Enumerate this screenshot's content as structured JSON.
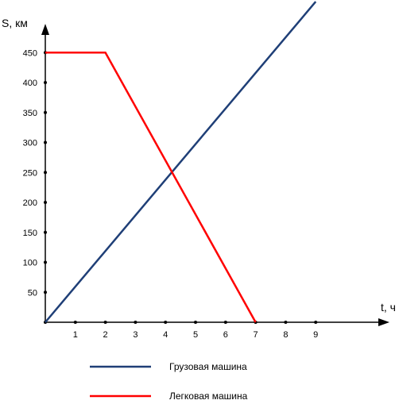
{
  "chart_data": {
    "type": "line",
    "xlabel": "t, ч",
    "ylabel": "S, км",
    "xlim": [
      0,
      10.85
    ],
    "ylim": [
      0,
      500
    ],
    "x_ticks": [
      1,
      2,
      3,
      4,
      5,
      6,
      7,
      8,
      9
    ],
    "y_ticks": [
      50,
      100,
      150,
      200,
      250,
      300,
      350,
      400,
      450
    ],
    "grid": false,
    "legend_position": "bottom",
    "series": [
      {
        "name": "Грузовая машина",
        "color": "#1f3f77",
        "points": [
          [
            0,
            0
          ],
          [
            9,
            535
          ]
        ]
      },
      {
        "name": "Легковая машина",
        "color": "#ff0000",
        "points": [
          [
            0,
            450
          ],
          [
            2,
            450
          ],
          [
            7,
            0
          ]
        ]
      }
    ]
  }
}
